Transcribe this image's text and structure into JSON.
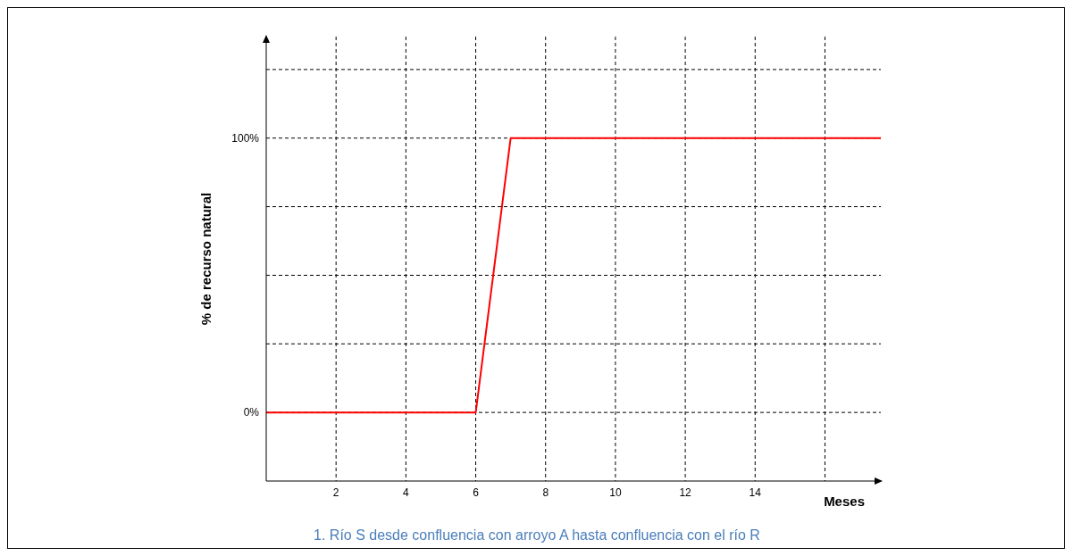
{
  "chart_data": {
    "type": "line",
    "xlabel": "Meses",
    "ylabel": "% de recurso natural",
    "x": [
      0,
      6,
      7,
      17.6
    ],
    "series": [
      {
        "color": "#ff0000",
        "values": [
          0,
          0,
          100,
          100
        ]
      }
    ],
    "xlim": [
      0,
      17.6
    ],
    "xticks": [
      2,
      4,
      6,
      8,
      10,
      12,
      14,
      {
        "value": 16,
        "label": null
      }
    ],
    "ylim": [
      -25,
      137
    ],
    "yticks": [
      {
        "value": 0,
        "label": "0%"
      },
      {
        "value": 25,
        "label": null
      },
      {
        "value": 50,
        "label": null
      },
      {
        "value": 75,
        "label": null
      },
      {
        "value": 100,
        "label": "100%"
      },
      {
        "value": 125,
        "label": null
      }
    ],
    "grid": true,
    "marker": "none",
    "line_style": "solid",
    "annotations": [
      "1. Río S desde confluencia con arroyo A hasta confluencia con el río R"
    ]
  }
}
